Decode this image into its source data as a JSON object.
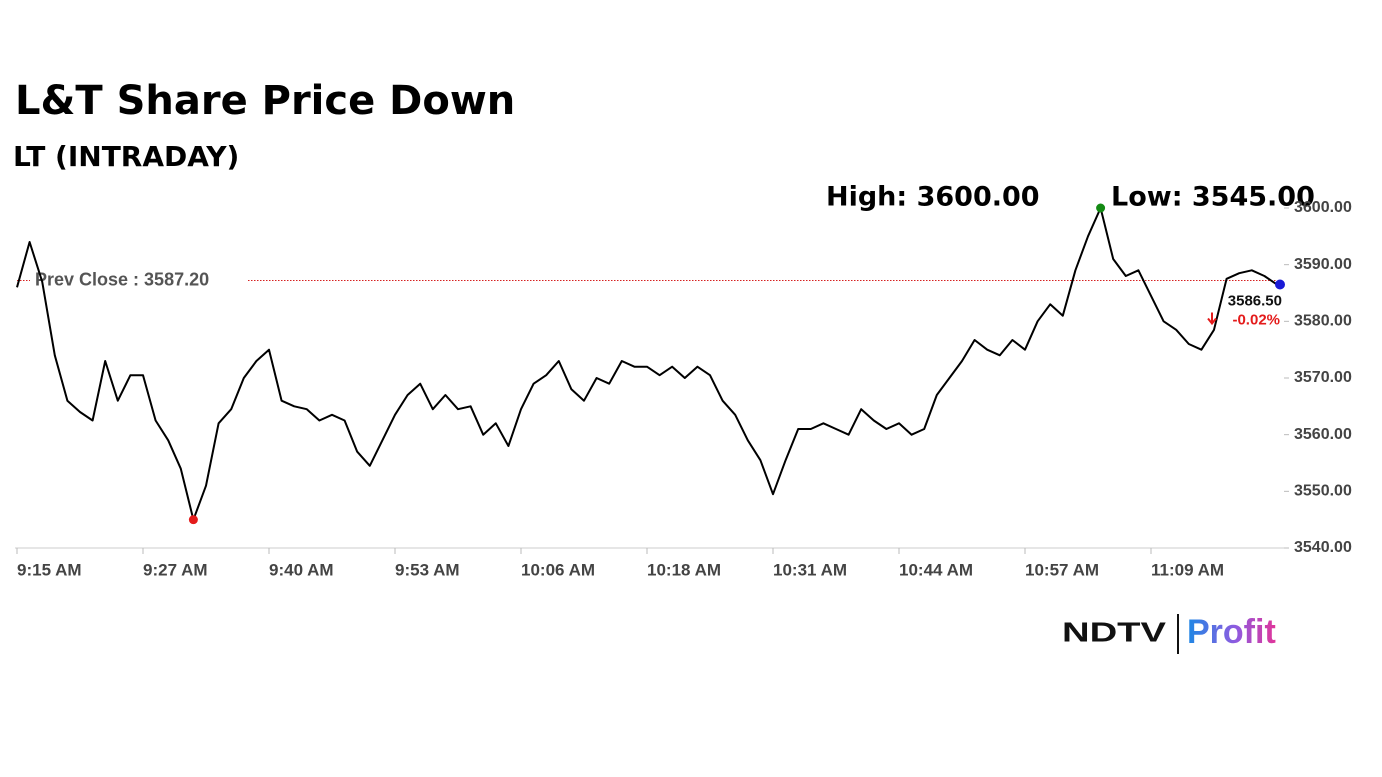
{
  "chart_data": {
    "type": "line",
    "title": "L&T Share Price Down",
    "subtitle": "LT (INTRADAY)",
    "high_label": "High: 3600.00",
    "low_label": "Low: 3545.00",
    "prev_close": {
      "value": 3587.2,
      "label": "Prev Close : 3587.20"
    },
    "last": {
      "value": 3586.5,
      "label": "3586.50"
    },
    "change_label": "-0.02%",
    "color": "#000000",
    "categories": [
      "9:15 AM",
      null,
      null,
      null,
      null,
      null,
      null,
      null,
      null,
      null,
      "9:27 AM",
      null,
      null,
      null,
      null,
      null,
      null,
      null,
      null,
      null,
      "9:40 AM",
      null,
      null,
      null,
      null,
      null,
      null,
      null,
      null,
      null,
      "9:53 AM",
      null,
      null,
      null,
      null,
      null,
      null,
      null,
      null,
      null,
      "10:06 AM",
      null,
      null,
      null,
      null,
      null,
      null,
      null,
      null,
      null,
      "10:18 AM",
      null,
      null,
      null,
      null,
      null,
      null,
      null,
      null,
      null,
      "10:31 AM",
      null,
      null,
      null,
      null,
      null,
      null,
      null,
      null,
      null,
      "10:44 AM",
      null,
      null,
      null,
      null,
      null,
      null,
      null,
      null,
      null,
      "10:57 AM",
      null,
      null,
      null,
      null,
      null,
      null,
      null,
      null,
      null,
      "11:09 AM",
      null,
      null,
      null,
      null,
      null,
      null,
      null,
      null,
      null,
      null
    ],
    "values": [
      3586,
      3594,
      3587,
      3574,
      3566,
      3564,
      3562.5,
      3573,
      3566,
      3570.5,
      3570.5,
      3562.5,
      3559,
      3554,
      3545,
      3551,
      3562,
      3564.5,
      3570,
      3573,
      3575,
      3566,
      3565,
      3564.5,
      3562.5,
      3563.5,
      3562.5,
      3557,
      3554.5,
      3559,
      3563.5,
      3567,
      3569,
      3564.5,
      3567,
      3564.5,
      3565,
      3560,
      3562,
      3558,
      3564.5,
      3569,
      3570.5,
      3573,
      3568,
      3566,
      3570,
      3569,
      3573,
      3572,
      3572,
      3570.5,
      3572,
      3570,
      3572,
      3570.5,
      3566,
      3563.5,
      3559,
      3555.5,
      3549.5,
      3555.5,
      3561,
      3561,
      3562,
      3561,
      3560,
      3564.5,
      3562.5,
      3561,
      3562,
      3560,
      3561,
      3567,
      3570,
      3573,
      3576.7,
      3575,
      3574,
      3576.7,
      3575,
      3580,
      3583,
      3581,
      3589,
      3595,
      3600,
      3591,
      3588,
      3589,
      3584.5,
      3580,
      3578.5,
      3576,
      3575,
      3578.5,
      3587.5,
      3588.5,
      3589,
      3588,
      3586.5
    ],
    "ylim": [
      3540,
      3600
    ],
    "yticks": [
      {
        "value": 3540,
        "label": "3540.00"
      },
      {
        "value": 3550,
        "label": "3550.00"
      },
      {
        "value": 3560,
        "label": "3560.00"
      },
      {
        "value": 3570,
        "label": "3570.00"
      },
      {
        "value": 3580,
        "label": "3580.00"
      },
      {
        "value": 3590,
        "label": "3590.00"
      },
      {
        "value": 3600,
        "label": "3600.00"
      }
    ],
    "high_color": "#138a13",
    "low_color": "#e41b1b",
    "last_color": "#1a1ad6",
    "prev_close_color": "#d62020",
    "change_color": "#e41b1b"
  },
  "logo": {
    "left": "NDTV",
    "right": "Profit"
  }
}
